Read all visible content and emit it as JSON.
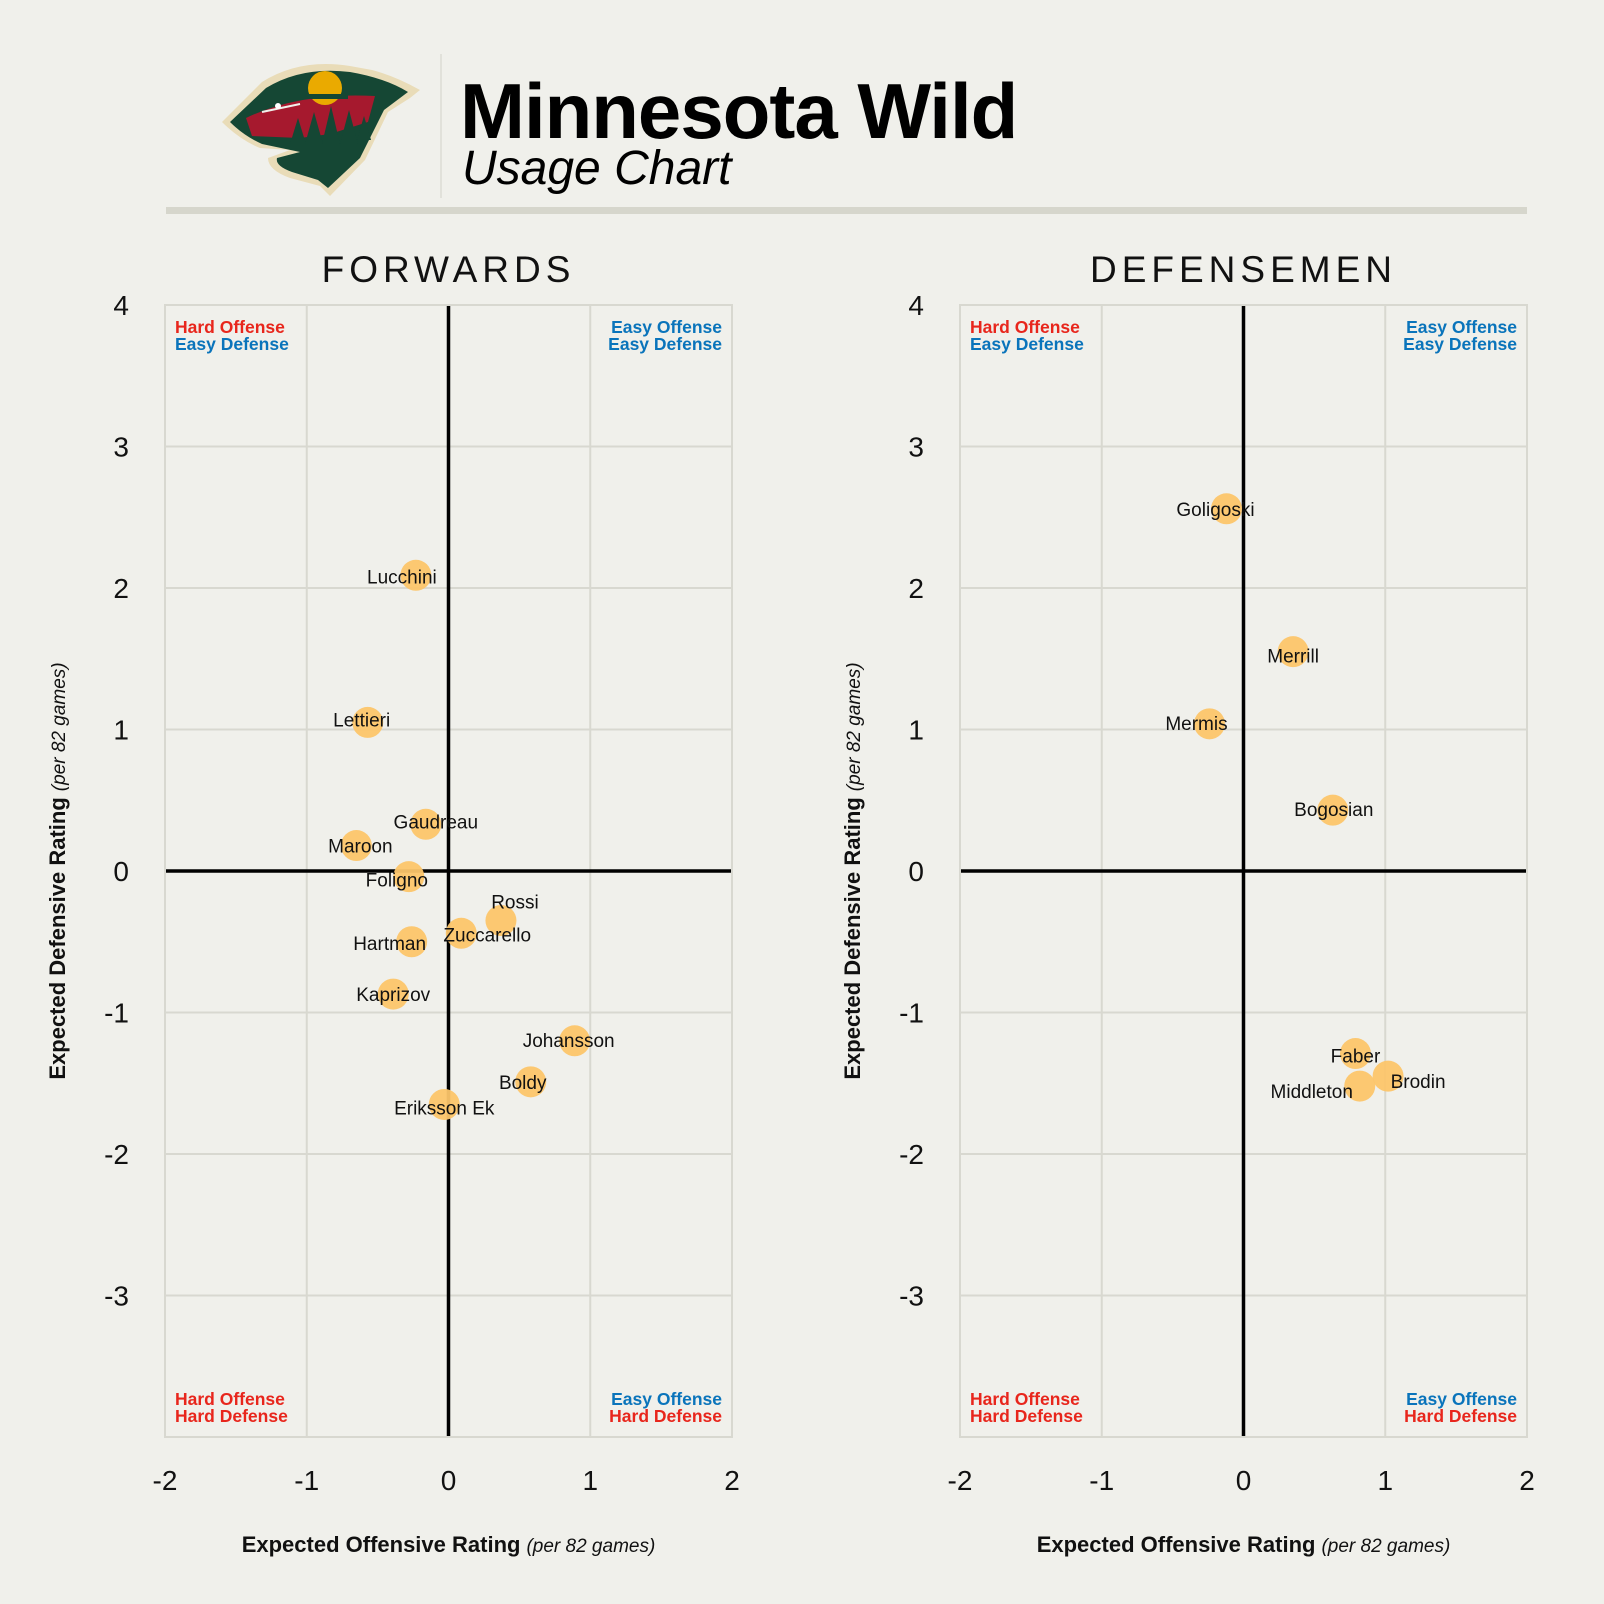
{
  "header": {
    "title": "Minnesota Wild",
    "subtitle": "Usage Chart",
    "logo": "minnesota-wild-logo"
  },
  "colors": {
    "background": "#f0f0eb",
    "point": "#fcc56a",
    "hard": "#e8261c",
    "easy": "#0a74bb",
    "grid": "#d8d8d0",
    "axis": "#000000"
  },
  "quadrant_labels": {
    "top_left": [
      "Hard Offense",
      "Easy Defense"
    ],
    "top_right": [
      "Easy Offense",
      "Easy Defense"
    ],
    "bottom_left": [
      "Hard Offense",
      "Hard Defense"
    ],
    "bottom_right": [
      "Easy Offense",
      "Hard Defense"
    ]
  },
  "chart_data": [
    {
      "type": "scatter",
      "title": "FORWARDS",
      "xlabel": "Expected Offensive Rating",
      "xlabel_note": "(per 82 games)",
      "ylabel": "Expected Defensive Rating",
      "ylabel_note": "(per 82 games)",
      "xlim": [
        -2,
        2
      ],
      "ylim": [
        -4,
        4
      ],
      "xticks": [
        "-2",
        "-1",
        "0",
        "1",
        "2"
      ],
      "yticks": [
        "4",
        "3",
        "2",
        "1",
        "0",
        "-1",
        "-2",
        "-3"
      ],
      "grid": true,
      "points": [
        {
          "name": "Lucchini",
          "x": -0.23,
          "y": 2.09
        },
        {
          "name": "Lettieri",
          "x": -0.57,
          "y": 1.05
        },
        {
          "name": "Gaudreau",
          "x": -0.16,
          "y": 0.33
        },
        {
          "name": "Maroon",
          "x": -0.65,
          "y": 0.18
        },
        {
          "name": "Foligno",
          "x": -0.28,
          "y": -0.04
        },
        {
          "name": "Rossi",
          "x": 0.37,
          "y": -0.35
        },
        {
          "name": "Zuccarello",
          "x": 0.09,
          "y": -0.44
        },
        {
          "name": "Hartman",
          "x": -0.26,
          "y": -0.5
        },
        {
          "name": "Kaprizov",
          "x": -0.39,
          "y": -0.87
        },
        {
          "name": "Johansson",
          "x": 0.89,
          "y": -1.2
        },
        {
          "name": "Boldy",
          "x": 0.58,
          "y": -1.49
        },
        {
          "name": "Eriksson Ek",
          "x": -0.03,
          "y": -1.65
        }
      ]
    },
    {
      "type": "scatter",
      "title": "DEFENSEMEN",
      "xlabel": "Expected Offensive Rating",
      "xlabel_note": "(per 82 games)",
      "ylabel": "Expected Defensive Rating",
      "ylabel_note": "(per 82 games)",
      "xlim": [
        -2,
        2
      ],
      "ylim": [
        -4,
        4
      ],
      "xticks": [
        "-2",
        "-1",
        "0",
        "1",
        "2"
      ],
      "yticks": [
        "4",
        "3",
        "2",
        "1",
        "0",
        "-1",
        "-2",
        "-3"
      ],
      "grid": true,
      "points": [
        {
          "name": "Goligoski",
          "x": -0.12,
          "y": 2.56
        },
        {
          "name": "Merrill",
          "x": 0.35,
          "y": 1.55
        },
        {
          "name": "Mermis",
          "x": -0.24,
          "y": 1.04
        },
        {
          "name": "Bogosian",
          "x": 0.63,
          "y": 0.43
        },
        {
          "name": "Faber",
          "x": 0.79,
          "y": -1.29
        },
        {
          "name": "Brodin",
          "x": 1.02,
          "y": -1.45
        },
        {
          "name": "Middleton",
          "x": 0.82,
          "y": -1.52
        }
      ]
    }
  ]
}
